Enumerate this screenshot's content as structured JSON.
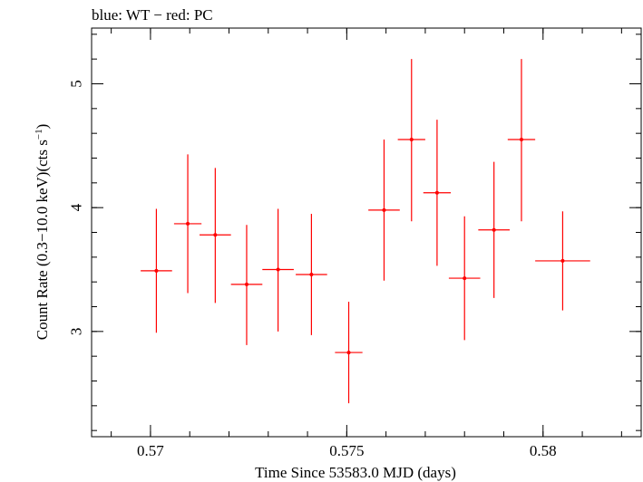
{
  "chart_data": {
    "type": "scatter",
    "title": "blue: WT − red: PC",
    "xlabel": "Time Since 53583.0 MJD (days)",
    "ylabel_main": "Count Rate (0.3−10.0 keV)(cts s",
    "ylabel_sup": "−1",
    "ylabel_tail": ")",
    "xlim": [
      0.5685,
      0.5825
    ],
    "ylim": [
      2.15,
      5.45
    ],
    "x_ticks": [
      {
        "value": 0.57,
        "label": "0.57"
      },
      {
        "value": 0.575,
        "label": "0.575"
      },
      {
        "value": 0.58,
        "label": "0.58"
      }
    ],
    "y_ticks": [
      {
        "value": 3,
        "label": "3"
      },
      {
        "value": 4,
        "label": "4"
      },
      {
        "value": 5,
        "label": "5"
      }
    ],
    "x_minor_step": 0.001,
    "y_minor_step": 0.2,
    "series": [
      {
        "color": "#ff0000",
        "points": [
          {
            "x": 0.57015,
            "y": 3.49,
            "xerr": 0.0004,
            "yerr_lo": 0.5,
            "yerr_hi": 0.5
          },
          {
            "x": 0.57095,
            "y": 3.87,
            "xerr": 0.00035,
            "yerr_lo": 0.56,
            "yerr_hi": 0.56
          },
          {
            "x": 0.57165,
            "y": 3.78,
            "xerr": 0.0004,
            "yerr_lo": 0.55,
            "yerr_hi": 0.54
          },
          {
            "x": 0.57245,
            "y": 3.38,
            "xerr": 0.0004,
            "yerr_lo": 0.49,
            "yerr_hi": 0.48
          },
          {
            "x": 0.57325,
            "y": 3.5,
            "xerr": 0.0004,
            "yerr_lo": 0.5,
            "yerr_hi": 0.49
          },
          {
            "x": 0.5741,
            "y": 3.46,
            "xerr": 0.0004,
            "yerr_lo": 0.49,
            "yerr_hi": 0.49
          },
          {
            "x": 0.57505,
            "y": 2.83,
            "xerr": 0.00035,
            "yerr_lo": 0.41,
            "yerr_hi": 0.41
          },
          {
            "x": 0.57595,
            "y": 3.98,
            "xerr": 0.0004,
            "yerr_lo": 0.57,
            "yerr_hi": 0.57
          },
          {
            "x": 0.57665,
            "y": 4.55,
            "xerr": 0.00035,
            "yerr_lo": 0.66,
            "yerr_hi": 0.65
          },
          {
            "x": 0.5773,
            "y": 4.12,
            "xerr": 0.00035,
            "yerr_lo": 0.59,
            "yerr_hi": 0.59
          },
          {
            "x": 0.578,
            "y": 3.43,
            "xerr": 0.0004,
            "yerr_lo": 0.5,
            "yerr_hi": 0.5
          },
          {
            "x": 0.57875,
            "y": 3.82,
            "xerr": 0.0004,
            "yerr_lo": 0.55,
            "yerr_hi": 0.55
          },
          {
            "x": 0.57945,
            "y": 4.55,
            "xerr": 0.00035,
            "yerr_lo": 0.66,
            "yerr_hi": 0.65
          },
          {
            "x": 0.5805,
            "y": 3.57,
            "xerr": 0.0007,
            "yerr_lo": 0.4,
            "yerr_hi": 0.4
          }
        ]
      }
    ]
  }
}
